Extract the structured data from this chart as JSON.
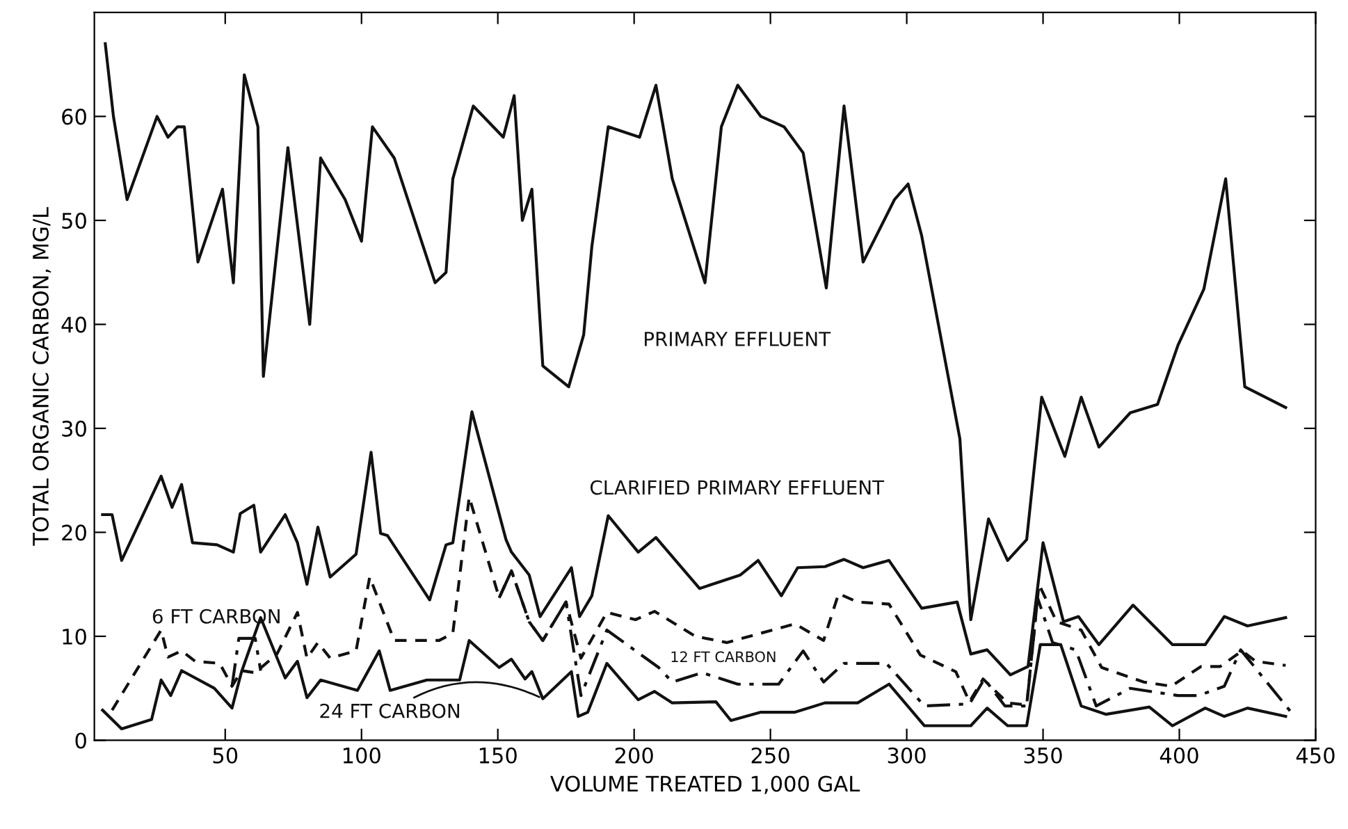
{
  "chart_data": {
    "type": "line",
    "xlabel": "VOLUME TREATED 1,000 GAL",
    "ylabel": "TOTAL ORGANIC CARBON, MG/L",
    "xlim": [
      2,
      450
    ],
    "ylim": [
      0,
      70
    ],
    "xticks": [
      50,
      100,
      150,
      200,
      250,
      300,
      350,
      400,
      450
    ],
    "yticks": [
      0,
      10,
      20,
      30,
      40,
      50,
      60
    ],
    "grid": false,
    "legend": false,
    "marker": "none",
    "series": [
      {
        "name": "PRIMARY EFFLUENT",
        "color": "#111111",
        "line_style": "solid",
        "x": [
          6,
          9,
          14,
          25,
          29,
          32.5,
          35,
          40,
          49,
          53,
          57,
          62,
          64,
          73,
          81,
          85,
          94,
          100,
          104,
          112,
          127,
          131,
          133.5,
          141,
          152,
          156,
          159,
          162.5,
          166.5,
          176,
          181.5,
          184.5,
          190.5,
          202,
          208,
          214,
          226,
          232,
          238,
          246.5,
          255,
          262,
          270.5,
          277,
          284,
          295.5,
          300.5,
          305.5,
          319.5,
          323.5,
          330,
          337,
          344,
          349.5,
          358,
          364,
          370.5,
          382,
          392,
          399.5,
          409,
          417,
          424,
          439
        ],
        "values": [
          67,
          60,
          52,
          60,
          58,
          59,
          59,
          46,
          53,
          44,
          64,
          59,
          35,
          57,
          40,
          56,
          52,
          48,
          59,
          56,
          44,
          45,
          54,
          61,
          58,
          62,
          50,
          53,
          36,
          34,
          39,
          47.5,
          59,
          58,
          63,
          54,
          44,
          59,
          63,
          60,
          59,
          56.5,
          43.5,
          61,
          46,
          52,
          53.5,
          48.5,
          29,
          11.6,
          21.3,
          17.3,
          19.3,
          33,
          27.3,
          33,
          28.2,
          31.5,
          32.3,
          38,
          43.4,
          54,
          34,
          32
        ]
      },
      {
        "name": "CLARIFIED PRIMARY EFFLUENT",
        "color": "#111111",
        "line_style": "solid",
        "x": [
          5,
          8.5,
          12,
          26.5,
          30.5,
          34,
          38,
          47,
          53,
          55.5,
          60.5,
          63,
          72,
          76.5,
          80,
          84,
          88.5,
          98,
          103.5,
          107,
          109.5,
          125,
          131,
          133.5,
          140.5,
          153,
          155,
          161.5,
          165.5,
          177,
          180,
          184.5,
          190.5,
          201.5,
          208,
          224,
          239,
          245.5,
          254,
          260,
          270,
          277,
          284,
          293.5,
          305.5,
          318.5,
          323.5,
          329.5,
          338,
          344.5,
          350,
          357.5,
          363,
          370.5,
          383,
          397.5,
          409.5,
          416.5,
          425,
          439
        ],
        "values": [
          21.7,
          21.7,
          17.3,
          25.4,
          22.4,
          24.6,
          19,
          18.8,
          18.1,
          21.8,
          22.6,
          18.1,
          21.7,
          19,
          15,
          20.5,
          15.7,
          17.9,
          27.7,
          19.9,
          19.7,
          13.5,
          18.8,
          19,
          31.6,
          19.3,
          18.1,
          15.9,
          11.9,
          16.6,
          11.9,
          13.9,
          21.6,
          18.1,
          19.5,
          14.6,
          15.9,
          17.3,
          13.9,
          16.6,
          16.7,
          17.4,
          16.6,
          17.3,
          12.7,
          13.3,
          8.3,
          8.7,
          6.3,
          7.1,
          19,
          11.4,
          11.9,
          9.2,
          13,
          9.2,
          9.2,
          11.9,
          11,
          11.8
        ]
      },
      {
        "name": "6 FT CARBON",
        "color": "#111111",
        "line_style": "dashed",
        "x": [
          8.5,
          26.5,
          29,
          34,
          39,
          48,
          52.5,
          56,
          61,
          69,
          76.5,
          80,
          84,
          88.5,
          98,
          103,
          112,
          128.5,
          133.5,
          139.5,
          150.5,
          155,
          161.5,
          166.5,
          175,
          180.5,
          190,
          200.5,
          207.5,
          222.5,
          234,
          246.5,
          259,
          269.5,
          275,
          282,
          293.5,
          305,
          318,
          323,
          328,
          337,
          344,
          348.5,
          355,
          364,
          371.5,
          387,
          397,
          408,
          415,
          423,
          428,
          439
        ],
        "values": [
          2.9,
          10.6,
          8,
          8.6,
          7.6,
          7.4,
          5.2,
          6.7,
          6.5,
          8.3,
          12.3,
          7.9,
          9.4,
          7.9,
          8.6,
          15.7,
          9.6,
          9.6,
          10.3,
          23.4,
          13.7,
          16.3,
          11.4,
          9.6,
          13.3,
          7.9,
          12.3,
          11.6,
          12.4,
          10,
          9.4,
          10.3,
          11.2,
          9.6,
          14.1,
          13.3,
          13.1,
          8.2,
          6.6,
          3.7,
          5.9,
          3.6,
          3.4,
          15,
          11.4,
          10.6,
          7,
          5.6,
          5.2,
          7.1,
          7.1,
          8.6,
          7.6,
          7.2
        ]
      },
      {
        "name": "12 FT CARBON",
        "color": "#111111",
        "line_style": "dashdot",
        "x": [
          52.5,
          55,
          61,
          63,
          100,
          150.5,
          155,
          161.5,
          166.5,
          175,
          180.5,
          190,
          209,
          214,
          225,
          238,
          253,
          262,
          269.5,
          277,
          292.5,
          306.5,
          323,
          328.5,
          336,
          344,
          348,
          353.5,
          362,
          369.5,
          382,
          399.5,
          407,
          416.5,
          422.5,
          441
        ],
        "values": [
          5.2,
          9.8,
          9.8,
          6.7,
          null,
          13.7,
          16.3,
          11.4,
          9.6,
          13.3,
          4.3,
          10.6,
          7,
          5.6,
          6.5,
          5.4,
          5.4,
          8.6,
          5.6,
          7.4,
          7.4,
          3.3,
          3.5,
          5.9,
          3.3,
          3.3,
          13.7,
          9.4,
          8.7,
          3.3,
          5,
          4.3,
          4.3,
          5.2,
          8.7,
          2.7
        ]
      },
      {
        "name": "24 FT CARBON",
        "color": "#111111",
        "line_style": "solid",
        "x": [
          5,
          12,
          23,
          26.5,
          30,
          34,
          46,
          52.5,
          56,
          63,
          72,
          76.5,
          80,
          85,
          98.5,
          106.5,
          110.5,
          124,
          136,
          139.5,
          150.5,
          155,
          160,
          162.5,
          166.5,
          177,
          179.5,
          183,
          190,
          201.5,
          207.5,
          214,
          230,
          235.5,
          246.5,
          259,
          270,
          282,
          293.5,
          306.5,
          323.5,
          329.5,
          337,
          344,
          349,
          356.5,
          364,
          373,
          389,
          397.5,
          409.5,
          416.5,
          425,
          439
        ],
        "values": [
          2.9,
          1.1,
          2,
          5.8,
          4.3,
          6.7,
          5,
          3.1,
          6.6,
          11.8,
          6,
          7.6,
          4.1,
          5.8,
          4.8,
          8.6,
          4.8,
          5.8,
          5.8,
          9.6,
          7,
          7.8,
          5.9,
          6.6,
          4,
          6.6,
          2.3,
          2.7,
          7.4,
          3.9,
          4.7,
          3.6,
          3.7,
          1.9,
          2.7,
          2.7,
          3.6,
          3.6,
          5.4,
          1.4,
          1.4,
          3.1,
          1.4,
          1.4,
          9.2,
          9.2,
          3.3,
          2.5,
          3.2,
          1.4,
          3.1,
          2.3,
          3.1,
          2.3
        ]
      }
    ]
  }
}
